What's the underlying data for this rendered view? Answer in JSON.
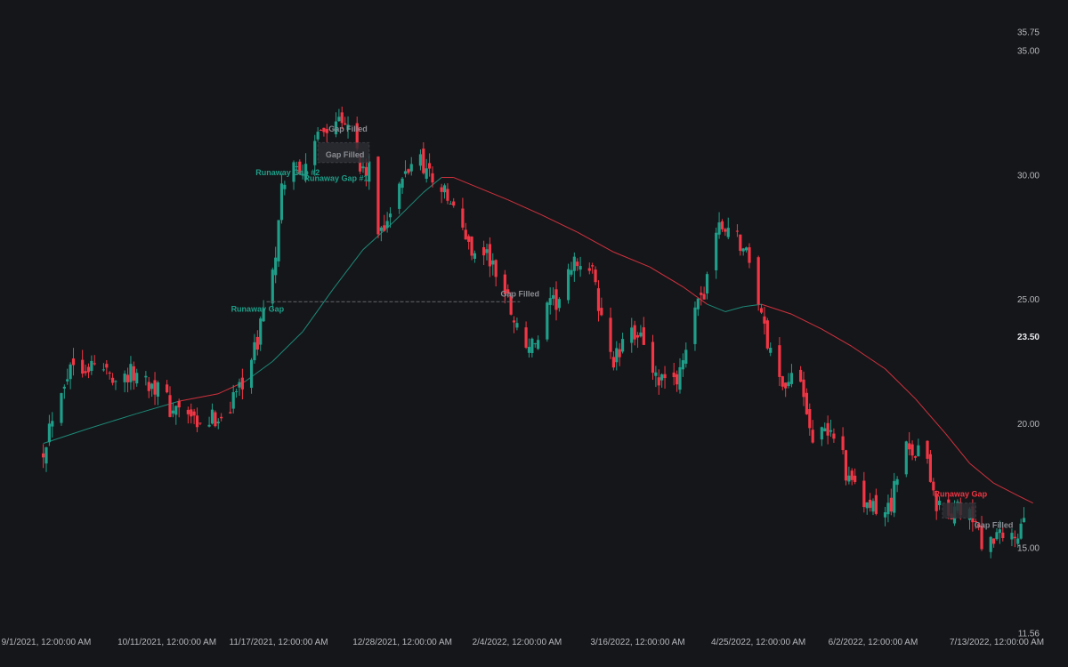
{
  "chart_data": {
    "type": "candlestick",
    "title": "",
    "colors": {
      "background": "#151619",
      "up": "#1f9e89",
      "down": "#f23645",
      "ma_up": "#1f9e89",
      "ma_down": "#f23645",
      "gap_box": "#2b2d33",
      "label_muted": "#8a8d94",
      "axis_text": "#b4b7bd"
    },
    "y_axis": {
      "ticks": [
        "35.75",
        "35.00",
        "30.00",
        "25.00",
        "20.00",
        "15.00",
        "11.56"
      ],
      "current_price": "23.50",
      "ylim": [
        11.56,
        35.75
      ]
    },
    "x_axis": {
      "ticks": [
        {
          "date": "2021-09-01",
          "label": "9/1/2021, 12:00:00 AM"
        },
        {
          "date": "2021-10-11",
          "label": "10/11/2021, 12:00:00 AM"
        },
        {
          "date": "2021-11-17",
          "label": "11/17/2021, 12:00:00 AM"
        },
        {
          "date": "2021-12-28",
          "label": "12/28/2021, 12:00:00 AM"
        },
        {
          "date": "2022-02-04",
          "label": "2/4/2022, 12:00:00 AM"
        },
        {
          "date": "2022-03-16",
          "label": "3/16/2022, 12:00:00 AM"
        },
        {
          "date": "2022-04-25",
          "label": "4/25/2022, 12:00:00 AM"
        },
        {
          "date": "2022-06-02",
          "label": "6/2/2022, 12:00:00 AM"
        },
        {
          "date": "2022-07-13",
          "label": "7/13/2022, 12:00:00 AM"
        }
      ]
    },
    "price_path": [
      [
        "2021-08-31",
        19.0
      ],
      [
        "2021-09-05",
        21.3
      ],
      [
        "2021-09-10",
        22.5
      ],
      [
        "2021-09-17",
        22.3
      ],
      [
        "2021-09-25",
        21.9
      ],
      [
        "2021-10-01",
        22.0
      ],
      [
        "2021-10-08",
        21.5
      ],
      [
        "2021-10-12",
        20.6
      ],
      [
        "2021-10-18",
        20.4
      ],
      [
        "2021-10-21",
        19.7
      ],
      [
        "2021-10-25",
        20.1
      ],
      [
        "2021-10-31",
        20.5
      ],
      [
        "2021-11-05",
        21.8
      ],
      [
        "2021-11-10",
        23.2
      ],
      [
        "2021-11-12",
        24.9
      ],
      [
        "2021-11-16",
        26.5
      ],
      [
        "2021-11-18",
        29.3
      ],
      [
        "2021-11-20",
        30.3
      ],
      [
        "2021-11-24",
        30.4
      ],
      [
        "2021-11-27",
        30.0
      ],
      [
        "2021-12-01",
        32.2
      ],
      [
        "2021-12-04",
        31.5
      ],
      [
        "2021-12-07",
        32.6
      ],
      [
        "2021-12-11",
        32.2
      ],
      [
        "2021-12-14",
        30.2
      ],
      [
        "2021-12-17",
        30.1
      ],
      [
        "2021-12-20",
        27.7
      ],
      [
        "2021-12-24",
        28.5
      ],
      [
        "2021-12-29",
        30.0
      ],
      [
        "2022-01-02",
        31.0
      ],
      [
        "2022-01-05",
        30.2
      ],
      [
        "2022-01-10",
        29.5
      ],
      [
        "2022-01-15",
        28.3
      ],
      [
        "2022-01-20",
        27.0
      ],
      [
        "2022-01-25",
        26.8
      ],
      [
        "2022-02-01",
        25.0
      ],
      [
        "2022-02-06",
        23.2
      ],
      [
        "2022-02-10",
        23.1
      ],
      [
        "2022-02-14",
        24.5
      ],
      [
        "2022-02-18",
        25.0
      ],
      [
        "2022-02-24",
        26.6
      ],
      [
        "2022-03-01",
        26.0
      ],
      [
        "2022-03-04",
        24.2
      ],
      [
        "2022-03-08",
        22.5
      ],
      [
        "2022-03-12",
        23.2
      ],
      [
        "2022-03-17",
        23.9
      ],
      [
        "2022-03-21",
        21.8
      ],
      [
        "2022-03-24",
        21.6
      ],
      [
        "2022-03-28",
        21.5
      ],
      [
        "2022-04-02",
        23.6
      ],
      [
        "2022-04-07",
        25.3
      ],
      [
        "2022-04-10",
        27.6
      ],
      [
        "2022-04-14",
        27.9
      ],
      [
        "2022-04-18",
        27.5
      ],
      [
        "2022-04-22",
        26.6
      ],
      [
        "2022-04-25",
        25.1
      ],
      [
        "2022-04-27",
        23.7
      ],
      [
        "2022-05-01",
        22.0
      ],
      [
        "2022-05-05",
        21.6
      ],
      [
        "2022-05-09",
        22.0
      ],
      [
        "2022-05-13",
        19.5
      ],
      [
        "2022-05-17",
        19.5
      ],
      [
        "2022-05-21",
        19.8
      ],
      [
        "2022-05-25",
        17.6
      ],
      [
        "2022-05-29",
        16.9
      ],
      [
        "2022-06-03",
        16.4
      ],
      [
        "2022-06-06",
        16.4
      ],
      [
        "2022-06-08",
        16.9
      ],
      [
        "2022-06-12",
        18.8
      ],
      [
        "2022-06-16",
        19.0
      ],
      [
        "2022-06-20",
        18.6
      ],
      [
        "2022-06-23",
        16.7
      ],
      [
        "2022-06-27",
        16.3
      ],
      [
        "2022-07-01",
        16.5
      ],
      [
        "2022-07-03",
        16.6
      ],
      [
        "2022-07-06",
        15.8
      ],
      [
        "2022-07-10",
        14.8
      ],
      [
        "2022-07-13",
        15.4
      ],
      [
        "2022-07-16",
        15.2
      ],
      [
        "2022-07-20",
        15.6
      ],
      [
        "2022-07-22",
        15.8
      ],
      [
        "2022-07-24",
        16.2
      ]
    ],
    "moving_average": [
      [
        "2021-08-31",
        19.2
      ],
      [
        "2021-09-15",
        19.8
      ],
      [
        "2021-10-01",
        20.4
      ],
      [
        "2021-10-15",
        20.9
      ],
      [
        "2021-10-28",
        21.2
      ],
      [
        "2021-11-06",
        21.7
      ],
      [
        "2021-11-15",
        22.5
      ],
      [
        "2021-11-25",
        23.7
      ],
      [
        "2021-12-05",
        25.4
      ],
      [
        "2021-12-15",
        27.0
      ],
      [
        "2021-12-25",
        28.1
      ],
      [
        "2022-01-04",
        29.3
      ],
      [
        "2022-01-10",
        29.9
      ],
      [
        "2022-01-14",
        29.9
      ],
      [
        "2022-01-20",
        29.6
      ],
      [
        "2022-02-01",
        29.0
      ],
      [
        "2022-02-12",
        28.4
      ],
      [
        "2022-02-24",
        27.7
      ],
      [
        "2022-03-08",
        26.9
      ],
      [
        "2022-03-20",
        26.3
      ],
      [
        "2022-03-31",
        25.5
      ],
      [
        "2022-04-08",
        24.8
      ],
      [
        "2022-04-14",
        24.5
      ],
      [
        "2022-04-20",
        24.7
      ],
      [
        "2022-04-26",
        24.8
      ],
      [
        "2022-05-06",
        24.4
      ],
      [
        "2022-05-16",
        23.8
      ],
      [
        "2022-05-26",
        23.1
      ],
      [
        "2022-06-06",
        22.2
      ],
      [
        "2022-06-16",
        21.0
      ],
      [
        "2022-06-26",
        19.6
      ],
      [
        "2022-07-04",
        18.4
      ],
      [
        "2022-07-12",
        17.6
      ],
      [
        "2022-07-20",
        17.1
      ],
      [
        "2022-07-25",
        16.8
      ]
    ],
    "gaps": [
      {
        "type": "runaway",
        "color": "up",
        "from": "2021-11-13",
        "to": "2022-02-05",
        "low": 24.9,
        "high": 24.9
      },
      {
        "type": "box",
        "from": "2021-11-30",
        "to": "2021-12-17",
        "low": 30.5,
        "high": 31.3
      },
      {
        "type": "box",
        "from": "2022-06-25",
        "to": "2022-07-06",
        "low": 16.2,
        "high": 16.8
      }
    ],
    "annotations": [
      {
        "text": "Gap Filled",
        "date": "2021-12-10",
        "value": 31.75,
        "color": "muted"
      },
      {
        "text": "Gap Filled",
        "date": "2021-12-09",
        "value": 30.7,
        "color": "muted"
      },
      {
        "text": "Runaway Gap #2",
        "date": "2021-11-20",
        "value": 30.0,
        "color": "up"
      },
      {
        "text": "Runaway Gap #1",
        "date": "2021-12-06",
        "value": 29.75,
        "color": "up"
      },
      {
        "text": "Gap Filled",
        "date": "2022-02-05",
        "value": 25.1,
        "color": "muted"
      },
      {
        "text": "Runaway Gap",
        "date": "2021-11-10",
        "value": 24.5,
        "color": "up"
      },
      {
        "text": "Runaway Gap",
        "date": "2022-07-01",
        "value": 17.05,
        "color": "down"
      },
      {
        "text": "Gap Filled",
        "date": "2022-07-12",
        "value": 15.8,
        "color": "muted"
      }
    ]
  }
}
